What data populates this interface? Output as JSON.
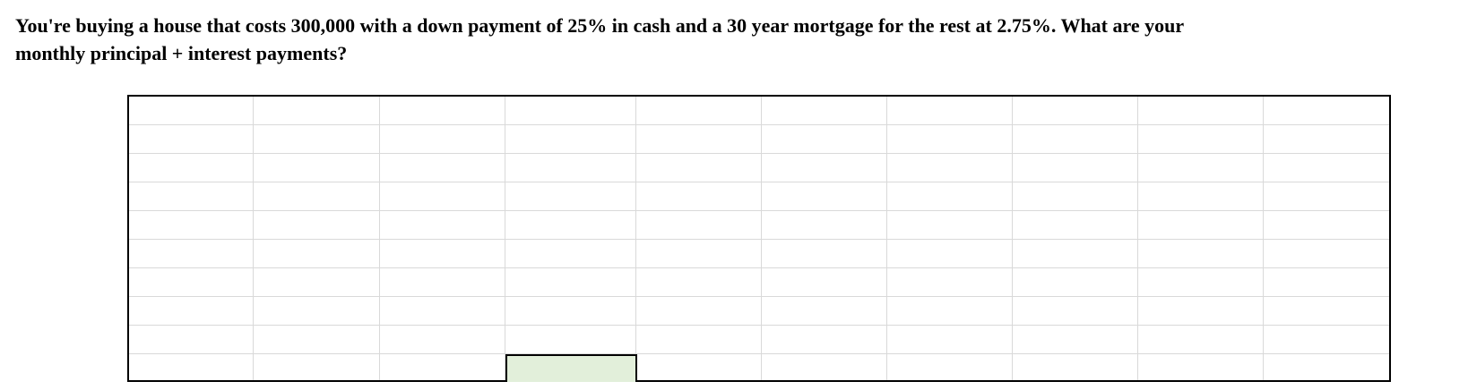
{
  "question": {
    "text": "You're buying a house that costs 300,000 with a down payment of  25% in cash and a 30 year mortgage for the rest at 2.75%. What are your\nmonthly principal + interest payments?"
  },
  "spreadsheet": {
    "rows": 10,
    "columns": 10,
    "cells": [],
    "answer_cell": {
      "row": 10,
      "column": 4,
      "value": "",
      "fill_color": "#e2efda"
    }
  },
  "colors": {
    "gridline": "#d9d9d9",
    "border": "#000000",
    "answer_fill": "#e2efda"
  }
}
